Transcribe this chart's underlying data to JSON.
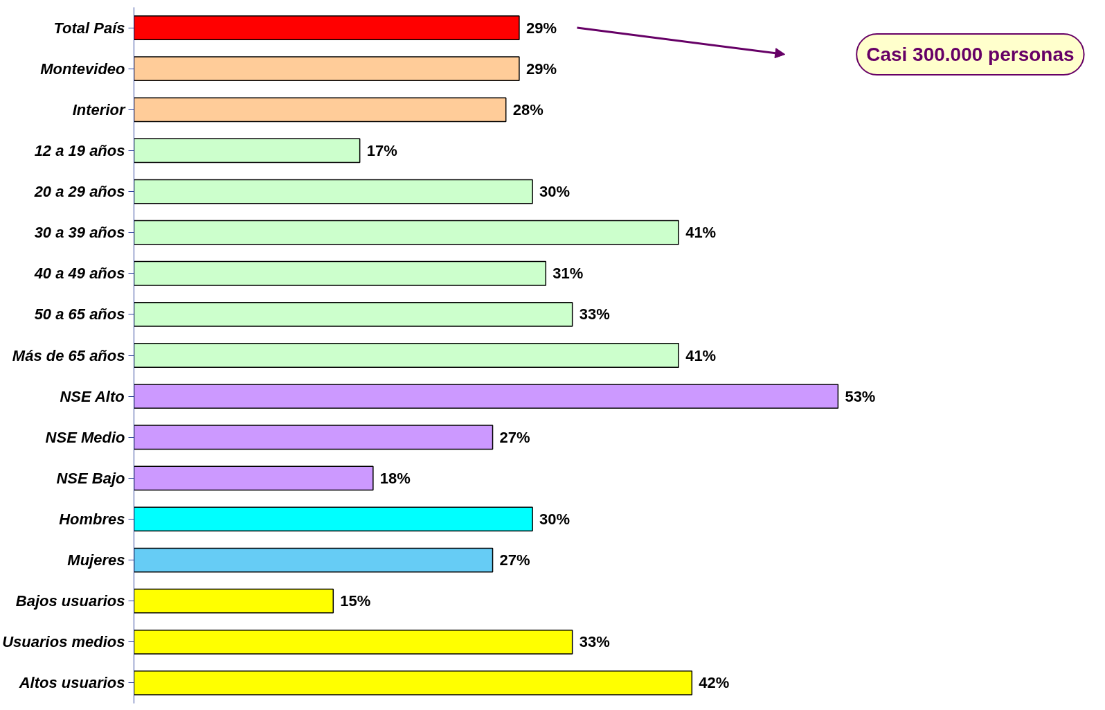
{
  "chart_data": {
    "type": "bar",
    "orientation": "horizontal",
    "value_labels": [
      "29%",
      "29%",
      "28%",
      "17%",
      "30%",
      "41%",
      "31%",
      "33%",
      "41%",
      "53%",
      "27%",
      "18%",
      "30%",
      "27%",
      "15%",
      "33%",
      "42%"
    ],
    "categories": [
      "Total País",
      "Montevideo",
      "Interior",
      "12 a 19 años",
      "20 a 29 años",
      "30 a 39 años",
      "40 a 49 años",
      "50 a 65 años",
      "Más de 65 años",
      "NSE Alto",
      "NSE Medio",
      "NSE Bajo",
      "Hombres",
      "Mujeres",
      "Bajos usuarios",
      "Usuarios medios",
      "Altos usuarios"
    ],
    "values": [
      29,
      29,
      28,
      17,
      30,
      41,
      31,
      33,
      41,
      53,
      27,
      18,
      30,
      27,
      15,
      33,
      42
    ],
    "colors": [
      "#ff0000",
      "#ffcc99",
      "#ffcc99",
      "#ccffcc",
      "#ccffcc",
      "#ccffcc",
      "#ccffcc",
      "#ccffcc",
      "#ccffcc",
      "#cc99ff",
      "#cc99ff",
      "#cc99ff",
      "#00ffff",
      "#66ccf5",
      "#ffff00",
      "#ffff00",
      "#ffff00"
    ],
    "annotations": [
      "Casi 300.000 personas"
    ]
  }
}
